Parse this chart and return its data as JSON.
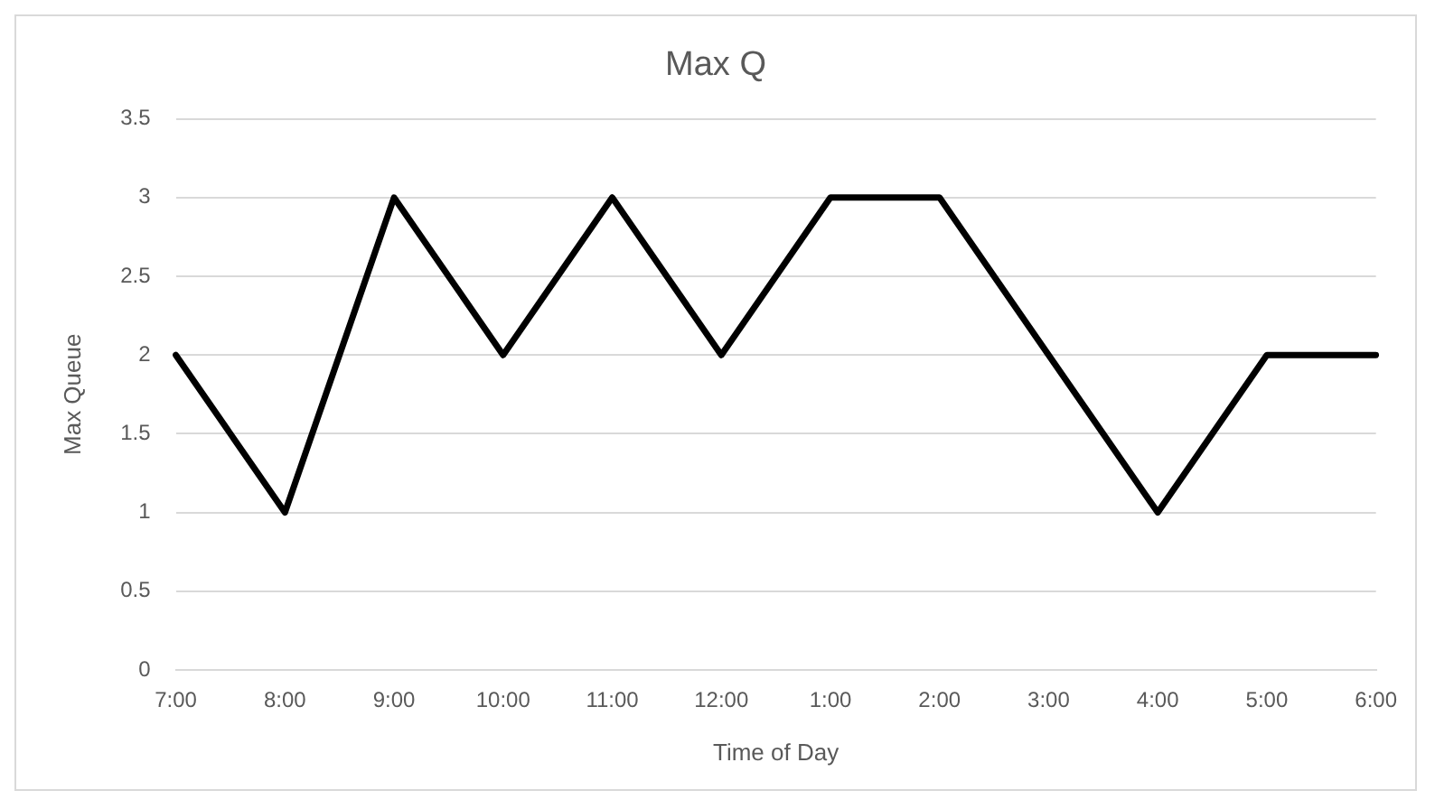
{
  "chart_data": {
    "type": "line",
    "title": "Max Q",
    "xlabel": "Time of Day",
    "ylabel": "Max Queue",
    "categories": [
      "7:00",
      "8:00",
      "9:00",
      "10:00",
      "11:00",
      "12:00",
      "1:00",
      "2:00",
      "3:00",
      "4:00",
      "5:00",
      "6:00"
    ],
    "series": [
      {
        "color": "#000000",
        "values": [
          2,
          1,
          3,
          2,
          3,
          2,
          3,
          3,
          2,
          1,
          2,
          2
        ]
      }
    ],
    "ylim": [
      0,
      3.5
    ],
    "yticks": [
      0,
      0.5,
      1,
      1.5,
      2,
      2.5,
      3,
      3.5
    ],
    "grid": "y",
    "legend": false,
    "marker": "none",
    "line_style": "solid"
  }
}
